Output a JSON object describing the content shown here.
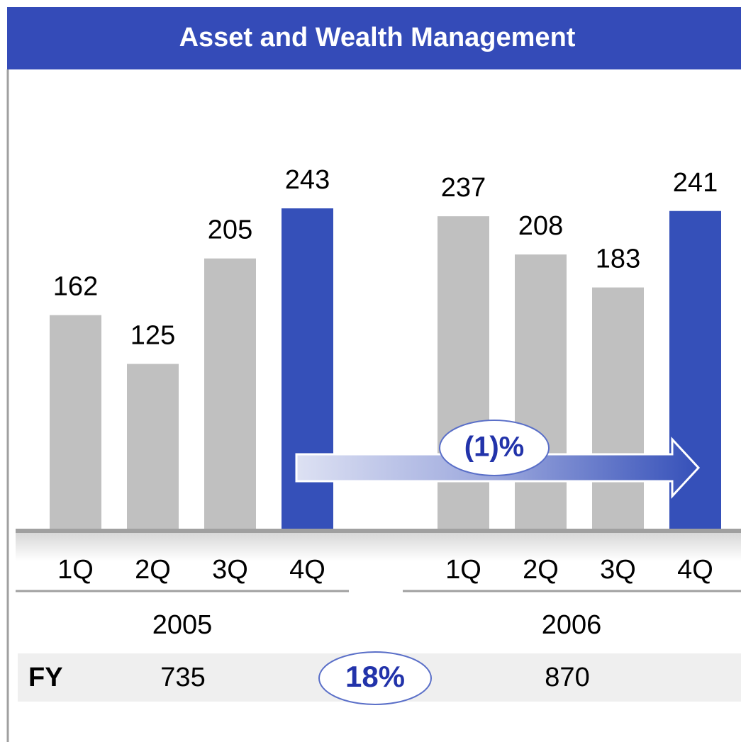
{
  "chart_data": {
    "type": "bar",
    "title": "Asset and Wealth Management",
    "groups": [
      {
        "name": "2005",
        "categories": [
          "1Q",
          "2Q",
          "3Q",
          "4Q"
        ],
        "values": [
          162,
          125,
          205,
          243
        ],
        "colors": [
          "#c0c0c0",
          "#c0c0c0",
          "#c0c0c0",
          "#3550b9"
        ]
      },
      {
        "name": "2006",
        "categories": [
          "1Q",
          "2Q",
          "3Q",
          "4Q"
        ],
        "values": [
          237,
          208,
          183,
          241
        ],
        "colors": [
          "#c0c0c0",
          "#c0c0c0",
          "#c0c0c0",
          "#3550b9"
        ]
      }
    ],
    "change_label": "(1)%",
    "fy": {
      "label": "FY",
      "values": [
        735,
        870
      ],
      "change": "18%"
    }
  }
}
